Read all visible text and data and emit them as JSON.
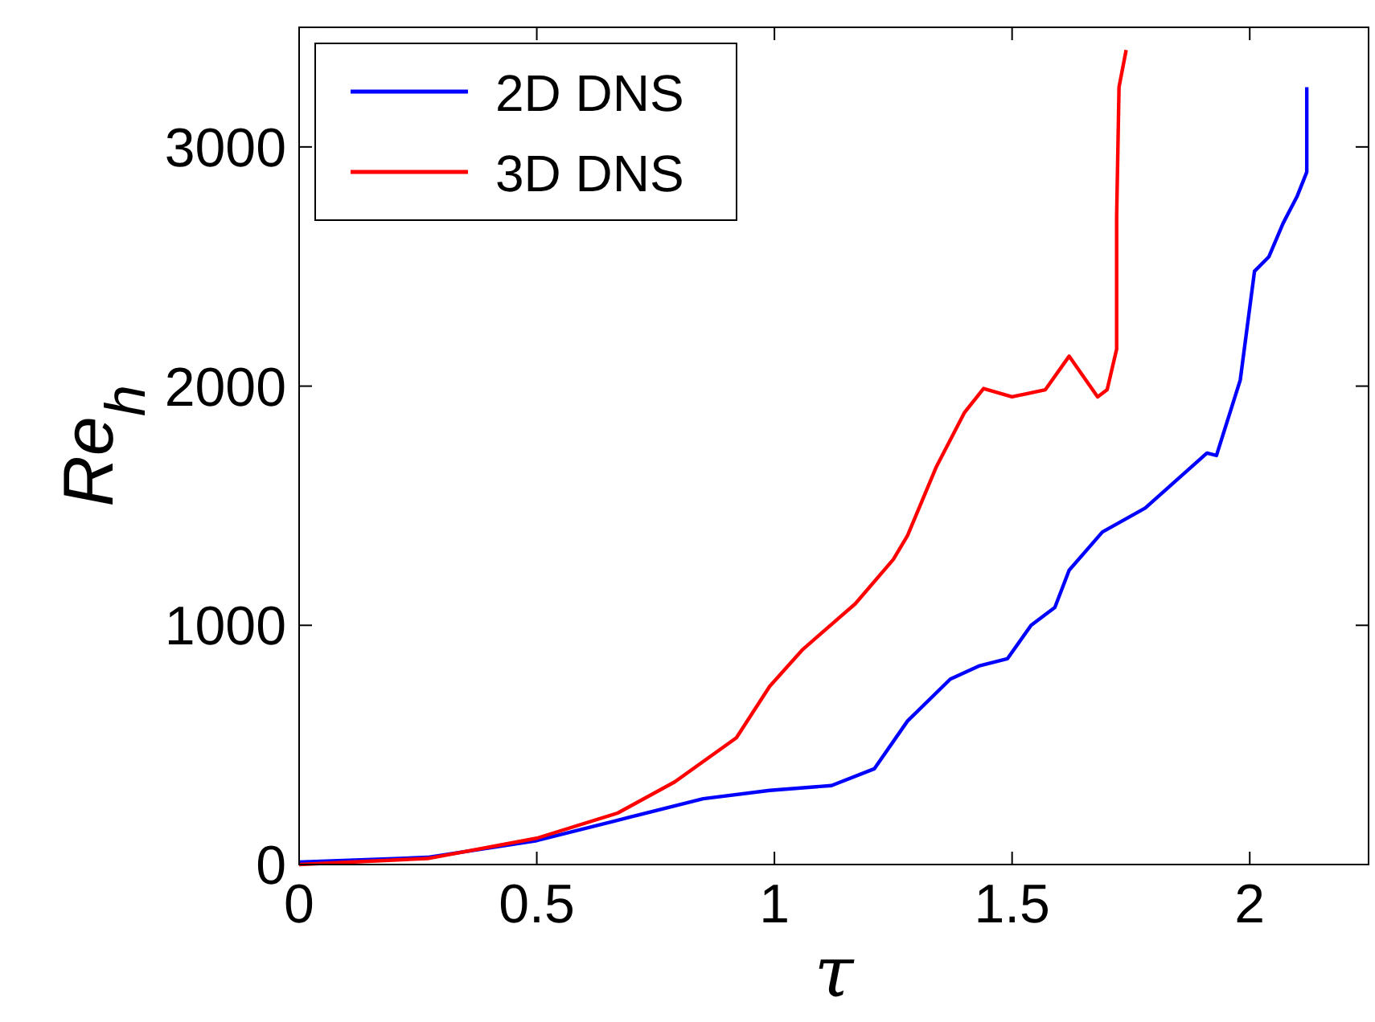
{
  "chart_data": {
    "type": "line",
    "xlabel": "τ",
    "ylabel": "Re$_{h}$",
    "xlim": [
      0,
      2.25
    ],
    "ylim": [
      0,
      3500
    ],
    "xticks": [
      0,
      0.5,
      1,
      1.5,
      2
    ],
    "yticks": [
      0,
      1000,
      2000,
      3000
    ],
    "grid": false,
    "legend": "top left",
    "line_style": "solid",
    "marker": "none",
    "series": [
      {
        "name": "2D DNS",
        "color": "#0000ff",
        "x": [
          0,
          0.27,
          0.5,
          0.7,
          0.85,
          0.99,
          1.12,
          1.21,
          1.28,
          1.37,
          1.43,
          1.49,
          1.54,
          1.59,
          1.62,
          1.69,
          1.78,
          1.91,
          1.93,
          1.98,
          2.01,
          2.04,
          2.07,
          2.1,
          2.12,
          2.12,
          2.12
        ],
        "values": [
          10,
          30,
          100,
          200,
          275,
          310,
          330,
          400,
          600,
          775,
          830,
          860,
          1000,
          1075,
          1230,
          1390,
          1490,
          1720,
          1710,
          2025,
          2480,
          2540,
          2680,
          2795,
          2895,
          2965,
          3250
        ]
      },
      {
        "name": "3D DNS",
        "color": "#ff0000",
        "x": [
          0,
          0.27,
          0.5,
          0.67,
          0.79,
          0.92,
          0.99,
          1.06,
          1.17,
          1.25,
          1.28,
          1.34,
          1.4,
          1.44,
          1.5,
          1.57,
          1.62,
          1.68,
          1.7,
          1.72,
          1.72,
          1.725,
          1.74
        ],
        "values": [
          0,
          25,
          110,
          215,
          345,
          530,
          745,
          900,
          1090,
          1275,
          1375,
          1660,
          1890,
          1990,
          1955,
          1985,
          2125,
          1955,
          1985,
          2155,
          2710,
          3250,
          3405
        ]
      }
    ]
  }
}
